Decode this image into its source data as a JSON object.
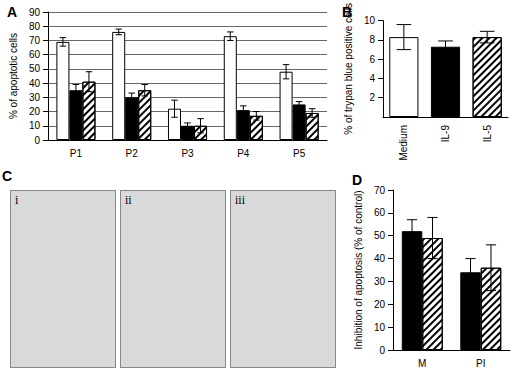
{
  "chart_data": [
    {
      "type": "bar",
      "title": "A",
      "y_label": "% of apoptotic cells",
      "categories": [
        "P1",
        "P2",
        "P3",
        "P4",
        "P5"
      ],
      "series": [
        {
          "color": "#ffffff",
          "values": [
            69,
            76,
            22,
            73,
            48
          ],
          "errors": [
            3,
            2,
            6,
            3,
            5
          ]
        },
        {
          "color": "#000000",
          "values": [
            35,
            30,
            10,
            21,
            25
          ],
          "errors": [
            4,
            3,
            2,
            3,
            2
          ]
        },
        {
          "color": "#ffffff",
          "marker": "hatch",
          "values": [
            41,
            35,
            10,
            17,
            19
          ],
          "errors": [
            7,
            4,
            5,
            3,
            3
          ]
        }
      ],
      "ylim": [
        0,
        90
      ],
      "yticks": [
        0,
        10,
        20,
        30,
        40,
        50,
        60,
        70,
        80,
        90
      ],
      "grid": true
    },
    {
      "type": "bar",
      "title": "B",
      "y_label": "% of trypan blue positive cells",
      "categories": [
        "Medium",
        "IL-9",
        "IL-5"
      ],
      "values": [
        8.3,
        7.3,
        8.3
      ],
      "errors": [
        1.3,
        0.6,
        0.6
      ],
      "colors": [
        "#ffffff",
        "#000000",
        "#ffffff"
      ],
      "markers": [
        "plain",
        "plain",
        "hatch"
      ],
      "ylim": [
        0,
        10
      ],
      "yticks": [
        2,
        4,
        6,
        8,
        10
      ],
      "grid": false
    },
    {
      "type": "bar",
      "title": "D",
      "y_label": "Inhibition of apoptosis (% of control)",
      "categories": [
        "M",
        "PI"
      ],
      "series": [
        {
          "color": "#000000",
          "values": [
            52,
            34
          ],
          "errors": [
            5,
            6
          ]
        },
        {
          "color": "#ffffff",
          "marker": "hatch",
          "values": [
            49,
            36
          ],
          "errors": [
            9,
            10
          ]
        }
      ],
      "ylim": [
        0,
        70
      ],
      "yticks": [
        0,
        10,
        20,
        30,
        40,
        50,
        60,
        70
      ],
      "grid": false
    }
  ],
  "panel_c": {
    "label": "C",
    "images": [
      "i",
      "ii",
      "iii"
    ]
  }
}
